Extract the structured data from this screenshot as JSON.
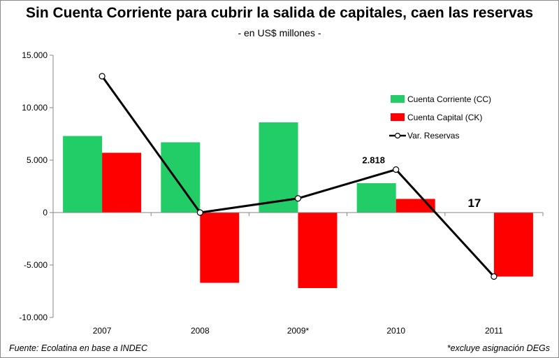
{
  "chart_data": {
    "type": "bar",
    "title": "Sin Cuenta Corriente para cubrir la salida de capitales, caen las reservas",
    "subtitle": "- en US$ millones -",
    "categories": [
      "2007",
      "2008",
      "2009*",
      "2010",
      "2011"
    ],
    "series": [
      {
        "name": "Cuenta Corriente (CC)",
        "type": "bar",
        "color": "#22cc66",
        "values": [
          7300,
          6700,
          8600,
          2800,
          0
        ]
      },
      {
        "name": "Cuenta Capital (CK)",
        "type": "bar",
        "color": "#ff0000",
        "values": [
          5700,
          -6700,
          -7200,
          1300,
          -6100
        ]
      },
      {
        "name": "Var. Reservas",
        "type": "line",
        "color": "#000000",
        "values": [
          13000,
          0,
          1350,
          4100,
          -6100
        ]
      }
    ],
    "ylim": [
      -10000,
      15000
    ],
    "yticks": [
      {
        "value": 15000,
        "label": "15.000"
      },
      {
        "value": 10000,
        "label": "10.000"
      },
      {
        "value": 5000,
        "label": "5.000"
      },
      {
        "value": 0,
        "label": "0"
      },
      {
        "value": -5000,
        "label": "-5.000"
      },
      {
        "value": -10000,
        "label": "-10.000"
      }
    ],
    "grid": false,
    "legend_position": "top-right",
    "annotations": [
      {
        "category": "2010",
        "text": "2.818"
      },
      {
        "category": "2011",
        "text": "17"
      }
    ]
  },
  "footer": {
    "source": "Fuente: Ecolatina en base a INDEC",
    "note": "*excluye asignación DEGs"
  }
}
